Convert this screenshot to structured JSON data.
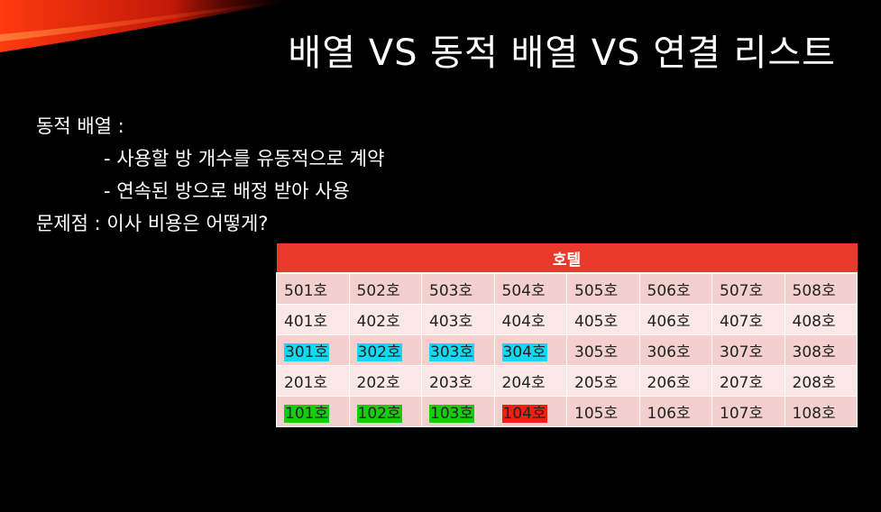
{
  "slide": {
    "title": "배열 VS 동적 배열 VS 연결 리스트",
    "lines": [
      "동적 배열 :",
      "- 사용할 방 개수를 유동적으로 계약",
      "- 연속된 방으로 배정 받아 사용",
      "문제점 : 이사 비용은 어떻게?"
    ]
  },
  "hotel": {
    "header": "호텔",
    "floors": [
      {
        "rooms": [
          {
            "label": "501호",
            "highlight": ""
          },
          {
            "label": "502호",
            "highlight": ""
          },
          {
            "label": "503호",
            "highlight": ""
          },
          {
            "label": "504호",
            "highlight": ""
          },
          {
            "label": "505호",
            "highlight": ""
          },
          {
            "label": "506호",
            "highlight": ""
          },
          {
            "label": "507호",
            "highlight": ""
          },
          {
            "label": "508호",
            "highlight": ""
          }
        ]
      },
      {
        "rooms": [
          {
            "label": "401호",
            "highlight": ""
          },
          {
            "label": "402호",
            "highlight": ""
          },
          {
            "label": "403호",
            "highlight": ""
          },
          {
            "label": "404호",
            "highlight": ""
          },
          {
            "label": "405호",
            "highlight": ""
          },
          {
            "label": "406호",
            "highlight": ""
          },
          {
            "label": "407호",
            "highlight": ""
          },
          {
            "label": "408호",
            "highlight": ""
          }
        ]
      },
      {
        "rooms": [
          {
            "label": "301호",
            "highlight": "#12d8f2"
          },
          {
            "label": "302호",
            "highlight": "#12d8f2"
          },
          {
            "label": "303호",
            "highlight": "#12d8f2"
          },
          {
            "label": "304호",
            "highlight": "#12d8f2"
          },
          {
            "label": "305호",
            "highlight": ""
          },
          {
            "label": "306호",
            "highlight": ""
          },
          {
            "label": "307호",
            "highlight": ""
          },
          {
            "label": "308호",
            "highlight": ""
          }
        ]
      },
      {
        "rooms": [
          {
            "label": "201호",
            "highlight": ""
          },
          {
            "label": "202호",
            "highlight": ""
          },
          {
            "label": "203호",
            "highlight": ""
          },
          {
            "label": "204호",
            "highlight": ""
          },
          {
            "label": "205호",
            "highlight": ""
          },
          {
            "label": "206호",
            "highlight": ""
          },
          {
            "label": "207호",
            "highlight": ""
          },
          {
            "label": "208호",
            "highlight": ""
          }
        ]
      },
      {
        "rooms": [
          {
            "label": "101호",
            "highlight": "#17cc10"
          },
          {
            "label": "102호",
            "highlight": "#17cc10"
          },
          {
            "label": "103호",
            "highlight": "#17cc10"
          },
          {
            "label": "104호",
            "highlight": "#f21e10"
          },
          {
            "label": "105호",
            "highlight": ""
          },
          {
            "label": "106호",
            "highlight": ""
          },
          {
            "label": "107호",
            "highlight": ""
          },
          {
            "label": "108호",
            "highlight": ""
          }
        ]
      }
    ]
  },
  "colors": {
    "background": "#000000",
    "table_header": "#e8392a",
    "row_odd": "#f3d0cd",
    "row_even": "#f9e8e6",
    "highlight_cyan": "#12d8f2",
    "highlight_green": "#17cc10",
    "highlight_red": "#f21e10"
  }
}
